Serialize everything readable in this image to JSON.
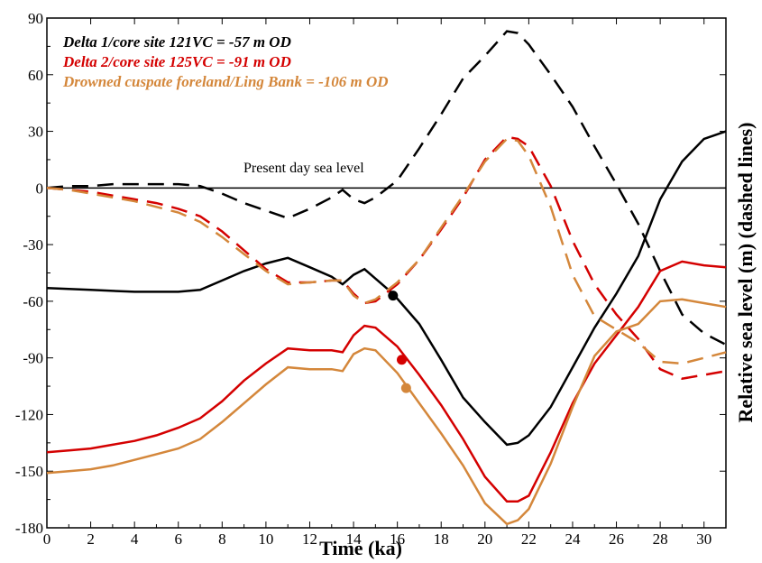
{
  "chart_data": {
    "type": "line",
    "title": "",
    "xlabel": "Time (ka)",
    "ylabel": "Relative sea level (m) (dashed lines)",
    "xlim": [
      0,
      31
    ],
    "ylim": [
      -180,
      90
    ],
    "x_ticks": [
      0,
      2,
      4,
      6,
      8,
      10,
      12,
      14,
      16,
      18,
      20,
      22,
      24,
      26,
      28,
      30
    ],
    "y_ticks": [
      90,
      60,
      30,
      0,
      -30,
      -60,
      -90,
      -120,
      -150,
      -180
    ],
    "grid": false,
    "legend_position": "top-left",
    "reference_line": {
      "y": 0,
      "label": "Present day sea level"
    },
    "series": [
      {
        "name": "Delta 1/core site 121VC = -57 m OD",
        "color": "#000000",
        "dashed": {
          "x": [
            0,
            1,
            2,
            3,
            5,
            6,
            7,
            8,
            9,
            10,
            11,
            12,
            13,
            13.5,
            14,
            14.5,
            15,
            16,
            17,
            18,
            19,
            20,
            21,
            21.5,
            22,
            23,
            24,
            25,
            26,
            27,
            28,
            29,
            30,
            31
          ],
          "y": [
            0,
            1,
            1,
            2,
            2,
            2,
            1,
            -3,
            -8,
            -12,
            -16,
            -11,
            -5,
            -1,
            -6,
            -8,
            -5,
            4,
            21,
            39,
            58,
            70,
            83,
            82,
            76,
            60,
            43,
            22,
            2,
            -19,
            -44,
            -67,
            -77,
            -83
          ]
        },
        "solid": {
          "x": [
            0,
            2,
            4,
            5,
            6,
            7,
            8,
            9,
            10,
            11,
            12,
            13,
            13.5,
            14,
            14.5,
            15,
            15.8,
            17,
            18,
            19,
            20,
            21,
            21.5,
            22,
            23,
            24,
            25,
            26,
            27,
            28,
            29,
            30,
            31
          ],
          "y": [
            -53,
            -54,
            -55,
            -55,
            -55,
            -54,
            -49,
            -44,
            -40,
            -37,
            -42,
            -47,
            -51,
            -46,
            -43,
            -48,
            -56,
            -72,
            -91,
            -111,
            -124,
            -136,
            -135,
            -131,
            -116,
            -95,
            -74,
            -56,
            -36,
            -6,
            14,
            26,
            30
          ]
        },
        "marker": {
          "x": 15.8,
          "y": -57
        }
      },
      {
        "name": "Delta 2/core site 125VC = -91 m OD",
        "color": "#d40000",
        "dashed": {
          "x": [
            0,
            1,
            2,
            3,
            4,
            5,
            6,
            7,
            8,
            9,
            10,
            11,
            12,
            13,
            13.5,
            14,
            14.5,
            15,
            16,
            17,
            18,
            19,
            20,
            21,
            21.5,
            22,
            23,
            24,
            25,
            26,
            27,
            28,
            29,
            30,
            31
          ],
          "y": [
            0,
            -1,
            -2,
            -4,
            -6,
            -8,
            -11,
            -15,
            -23,
            -33,
            -43,
            -50,
            -50,
            -49,
            -49,
            -56,
            -61,
            -60,
            -51,
            -38,
            -22,
            -5,
            15,
            27,
            26,
            22,
            1,
            -28,
            -51,
            -67,
            -80,
            -96,
            -101,
            -99,
            -97
          ]
        },
        "solid": {
          "x": [
            0,
            1,
            2,
            3,
            4,
            5,
            6,
            7,
            8,
            9,
            10,
            11,
            12,
            13,
            13.5,
            14,
            14.5,
            15,
            16,
            17,
            18,
            19,
            20,
            21,
            21.5,
            22,
            23,
            24,
            25,
            26,
            27,
            28,
            29,
            30,
            31
          ],
          "y": [
            -140,
            -139,
            -138,
            -136,
            -134,
            -131,
            -127,
            -122,
            -113,
            -102,
            -93,
            -85,
            -86,
            -86,
            -87,
            -78,
            -73,
            -74,
            -84,
            -99,
            -115,
            -133,
            -153,
            -166,
            -166,
            -163,
            -140,
            -114,
            -93,
            -78,
            -63,
            -44,
            -39,
            -41,
            -42
          ]
        },
        "marker": {
          "x": 16.2,
          "y": -91
        }
      },
      {
        "name": "Drowned cuspate foreland/Ling Bank = -106 m OD",
        "color": "#d4873b",
        "dashed": {
          "x": [
            0,
            1,
            2,
            3,
            4,
            5,
            6,
            7,
            8,
            9,
            10,
            11,
            12,
            13,
            13.5,
            14,
            14.5,
            15,
            16,
            17,
            18,
            19,
            20,
            21,
            21.5,
            22,
            23,
            24,
            25,
            26,
            27,
            28,
            29,
            30,
            31
          ],
          "y": [
            0,
            -1,
            -3,
            -5,
            -7,
            -10,
            -13,
            -18,
            -26,
            -35,
            -44,
            -51,
            -50,
            -49,
            -49,
            -57,
            -61,
            -59,
            -50,
            -38,
            -21,
            -4,
            14,
            26,
            25,
            17,
            -10,
            -46,
            -68,
            -75,
            -82,
            -92,
            -93,
            -90,
            -87
          ]
        },
        "solid": {
          "x": [
            0,
            1,
            2,
            3,
            4,
            5,
            6,
            7,
            8,
            9,
            10,
            11,
            12,
            13,
            13.5,
            14,
            14.5,
            15,
            16,
            17,
            18,
            19,
            20,
            21,
            21.5,
            22,
            23,
            24,
            25,
            26,
            27,
            28,
            29,
            30,
            31
          ],
          "y": [
            -151,
            -150,
            -149,
            -147,
            -144,
            -141,
            -138,
            -133,
            -124,
            -114,
            -104,
            -95,
            -96,
            -96,
            -97,
            -88,
            -85,
            -86,
            -98,
            -114,
            -130,
            -147,
            -167,
            -178,
            -176,
            -170,
            -146,
            -116,
            -89,
            -76,
            -72,
            -60,
            -59,
            -61,
            -63
          ]
        },
        "marker": {
          "x": 16.4,
          "y": -106
        }
      }
    ]
  }
}
